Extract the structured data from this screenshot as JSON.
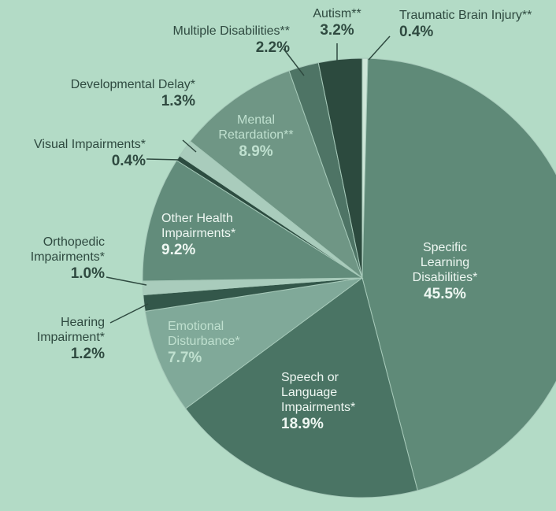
{
  "chart_data": {
    "type": "pie",
    "categories": [
      "Traumatic Brain Injury**",
      "Specific Learning Disabilities*",
      "Speech or Language Impairments*",
      "Emotional Disturbance*",
      "Hearing Impairment*",
      "Orthopedic Impairments*",
      "Other Health Impairments*",
      "Visual Impairments*",
      "Developmental Delay*",
      "Mental Retardation**",
      "Multiple Disabilities**",
      "Autism**"
    ],
    "values": [
      0.4,
      45.5,
      18.9,
      7.7,
      1.2,
      1.0,
      9.2,
      0.4,
      1.3,
      8.9,
      2.2,
      3.2
    ],
    "value_labels": [
      "0.4%",
      "45.5%",
      "18.9%",
      "7.7%",
      "1.2%",
      "1.0%",
      "9.2%",
      "0.4%",
      "1.3%",
      "8.9%",
      "2.2%",
      "3.2%"
    ],
    "colors": [
      "#cde6d8",
      "#5f8a78",
      "#4a7464",
      "#80a999",
      "#33574a",
      "#a9ccbc",
      "#628c7b",
      "#2c4c40",
      "#a9ccbc",
      "#6f9685",
      "#4e7465",
      "#2c4a3e"
    ]
  }
}
